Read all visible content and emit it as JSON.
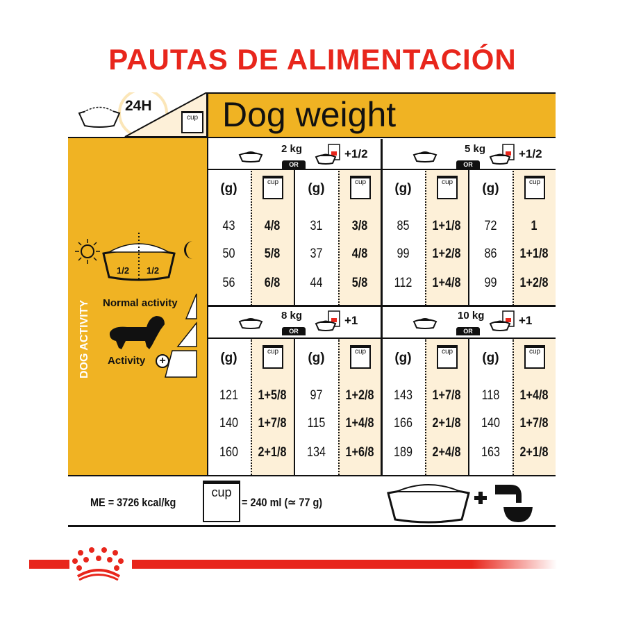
{
  "title": "PAUTAS DE ALIMENTACIÓN",
  "header": {
    "period": "24H",
    "cup_label": "cup",
    "dog_weight": "Dog weight"
  },
  "left_panel": {
    "day_split": [
      "1/2",
      "1/2"
    ],
    "dog_activity": "DOG ACTIVITY",
    "normal_activity": "Normal activity",
    "activity": "Activity"
  },
  "column_headers": {
    "grams": "(g)",
    "cup": "cup"
  },
  "blocks": [
    {
      "weight": "2 kg",
      "or": "OR",
      "wet_extra": "+1/2",
      "columns": [
        {
          "g": [
            "43",
            "50",
            "56"
          ],
          "cup": [
            "4/8",
            "5/8",
            "6/8"
          ]
        },
        {
          "g": [
            "31",
            "37",
            "44"
          ],
          "cup": [
            "3/8",
            "4/8",
            "5/8"
          ]
        }
      ]
    },
    {
      "weight": "5 kg",
      "or": "OR",
      "wet_extra": "+1/2",
      "columns": [
        {
          "g": [
            "85",
            "99",
            "112"
          ],
          "cup": [
            "1+1/8",
            "1+2/8",
            "1+4/8"
          ]
        },
        {
          "g": [
            "72",
            "86",
            "99"
          ],
          "cup": [
            "1",
            "1+1/8",
            "1+2/8"
          ]
        }
      ]
    },
    {
      "weight": "8 kg",
      "or": "OR",
      "wet_extra": "+1",
      "columns": [
        {
          "g": [
            "121",
            "140",
            "160"
          ],
          "cup": [
            "1+5/8",
            "1+7/8",
            "2+1/8"
          ]
        },
        {
          "g": [
            "97",
            "115",
            "134"
          ],
          "cup": [
            "1+2/8",
            "1+4/8",
            "1+6/8"
          ]
        }
      ]
    },
    {
      "weight": "10 kg",
      "or": "OR",
      "wet_extra": "+1",
      "columns": [
        {
          "g": [
            "143",
            "166",
            "189"
          ],
          "cup": [
            "1+7/8",
            "2+1/8",
            "2+4/8"
          ]
        },
        {
          "g": [
            "118",
            "140",
            "163"
          ],
          "cup": [
            "1+4/8",
            "1+7/8",
            "2+1/8"
          ]
        }
      ]
    }
  ],
  "footer": {
    "energy": "ME = 3726 kcal/kg",
    "cup_label": "cup",
    "cup_equivalence": "= 240 ml (≃ 77 g)"
  },
  "colors": {
    "title_red": "#e8261c",
    "accent_yellow": "#f0b323",
    "cream": "#fdf0d8"
  },
  "brand": "Royal Canin crown logo"
}
